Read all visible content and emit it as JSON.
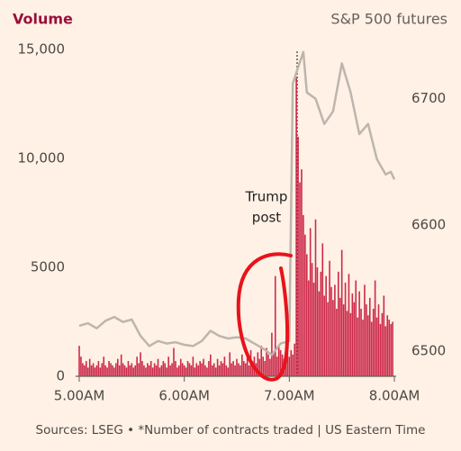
{
  "chart_data": {
    "type": "bar-line",
    "y_label": "Volume",
    "y2_label": "S&P 500 futures",
    "annotation": [
      "Trump",
      "post"
    ],
    "footer": "Sources: LSEG • *Number of contracts traded | US Eastern Time",
    "xlim": [
      300,
      480
    ],
    "xticks": [
      {
        "value": 300,
        "label": "5.00AM"
      },
      {
        "value": 360,
        "label": "6.00AM"
      },
      {
        "value": 420,
        "label": "7.00AM"
      },
      {
        "value": 480,
        "label": "8.00AM"
      }
    ],
    "ylim": [
      0,
      15000
    ],
    "yticks": [
      0,
      5000,
      {
        "value": 10000,
        "label": "10,000"
      },
      {
        "value": 15000,
        "label": "15,000"
      }
    ],
    "y2lim": [
      6480,
      6739
    ],
    "y2ticks": [
      6500,
      6600,
      6700
    ],
    "series": [
      {
        "name": "Volume",
        "color": "#cc2a4a",
        "x": [
          300,
          301,
          302,
          303,
          304,
          305,
          306,
          307,
          308,
          309,
          310,
          311,
          312,
          313,
          314,
          315,
          316,
          317,
          318,
          319,
          320,
          321,
          322,
          323,
          324,
          325,
          326,
          327,
          328,
          329,
          330,
          331,
          332,
          333,
          334,
          335,
          336,
          337,
          338,
          339,
          340,
          341,
          342,
          343,
          344,
          345,
          346,
          347,
          348,
          349,
          350,
          351,
          352,
          353,
          354,
          355,
          356,
          357,
          358,
          359,
          360,
          361,
          362,
          363,
          364,
          365,
          366,
          367,
          368,
          369,
          370,
          371,
          372,
          373,
          374,
          375,
          376,
          377,
          378,
          379,
          380,
          381,
          382,
          383,
          384,
          385,
          386,
          387,
          388,
          389,
          390,
          391,
          392,
          393,
          394,
          395,
          396,
          397,
          398,
          399,
          400,
          401,
          402,
          403,
          404,
          405,
          406,
          407,
          408,
          409,
          410,
          411,
          412,
          413,
          414,
          415,
          416,
          417,
          418,
          419,
          420,
          421,
          422,
          423,
          424,
          425,
          426,
          427,
          428,
          429,
          430,
          431,
          432,
          433,
          434,
          435,
          436,
          437,
          438,
          439,
          440,
          441,
          442,
          443,
          444,
          445,
          446,
          447,
          448,
          449,
          450,
          451,
          452,
          453,
          454,
          455,
          456,
          457,
          458,
          459,
          460,
          461,
          462,
          463,
          464,
          465,
          466,
          467,
          468,
          469,
          470,
          471,
          472,
          473,
          474,
          475,
          476,
          477,
          478,
          479
        ],
        "values": [
          1400,
          900,
          600,
          500,
          700,
          400,
          800,
          500,
          600,
          400,
          500,
          700,
          400,
          600,
          900,
          500,
          400,
          700,
          600,
          500,
          400,
          600,
          800,
          500,
          1000,
          600,
          500,
          400,
          700,
          500,
          600,
          400,
          500,
          900,
          600,
          1100,
          700,
          500,
          400,
          600,
          500,
          700,
          400,
          600,
          500,
          800,
          400,
          500,
          700,
          600,
          400,
          900,
          500,
          600,
          1300,
          700,
          400,
          500,
          800,
          600,
          500,
          400,
          700,
          600,
          500,
          900,
          400,
          600,
          500,
          700,
          600,
          800,
          500,
          400,
          700,
          1000,
          500,
          600,
          400,
          800,
          500,
          700,
          600,
          900,
          500,
          400,
          1100,
          600,
          700,
          500,
          800,
          600,
          500,
          1000,
          700,
          600,
          900,
          500,
          1200,
          700,
          900,
          600,
          1100,
          800,
          1400,
          900,
          700,
          1300,
          1000,
          800,
          2000,
          1100,
          4600,
          900,
          1400,
          1200,
          1000,
          800,
          1300,
          1100,
          900,
          1200,
          1000,
          1500,
          13700,
          11000,
          8900,
          9500,
          7400,
          6500,
          5600,
          4400,
          6800,
          5200,
          4300,
          7200,
          5000,
          3900,
          4800,
          6100,
          3700,
          4600,
          3400,
          5300,
          4100,
          3500,
          4200,
          3100,
          4800,
          3600,
          5800,
          3300,
          4300,
          3000,
          4700,
          2900,
          3800,
          3400,
          4400,
          2700,
          3900,
          3100,
          2600,
          4200,
          3300,
          2800,
          3600,
          2500,
          3100,
          4400,
          2700,
          3300,
          2400,
          2900,
          3700,
          2300,
          2800,
          2600,
          2400,
          2500
        ]
      },
      {
        "name": "S&P 500 futures",
        "color": "#bdb5ae",
        "axis": "y2",
        "x": [
          300,
          305,
          310,
          315,
          320,
          325,
          330,
          335,
          340,
          345,
          350,
          355,
          360,
          365,
          370,
          375,
          380,
          385,
          390,
          395,
          400,
          405,
          410,
          415,
          420,
          422,
          425,
          428,
          430,
          435,
          440,
          445,
          450,
          455,
          460,
          465,
          470,
          475,
          478,
          480
        ],
        "values": [
          6520,
          6522,
          6518,
          6524,
          6527,
          6523,
          6525,
          6512,
          6504,
          6508,
          6506,
          6507,
          6505,
          6504,
          6508,
          6516,
          6512,
          6510,
          6511,
          6510,
          6506,
          6502,
          6497,
          6506,
          6508,
          6712,
          6725,
          6737,
          6705,
          6700,
          6680,
          6690,
          6728,
          6705,
          6672,
          6680,
          6652,
          6640,
          6642,
          6636
        ]
      }
    ]
  }
}
